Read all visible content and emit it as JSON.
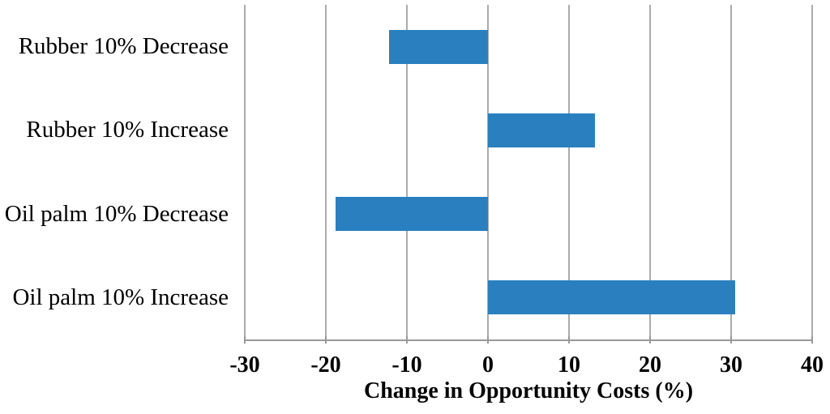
{
  "chart_data": {
    "type": "bar",
    "orientation": "horizontal",
    "title": "",
    "xlabel": "Change in Opportunity Costs (%)",
    "ylabel": "",
    "categories": [
      "Rubber 10% Decrease",
      "Rubber 10% Increase",
      "Oil palm 10% Decrease",
      "Oil palm 10% Increase"
    ],
    "values": [
      -12.2,
      13.2,
      -18.8,
      30.5
    ],
    "xlim": [
      -30,
      40
    ],
    "xticks": [
      -30,
      -20,
      -10,
      0,
      10,
      20,
      30,
      40
    ],
    "xtick_labels": [
      "-30",
      "-20",
      "-10",
      "0",
      "10",
      "20",
      "30",
      "40"
    ],
    "grid": "vertical",
    "legend": "none",
    "colors": {
      "bar": "#2a80bf",
      "gridline": "#ababab",
      "axis_line": "#999999",
      "text": "#000000",
      "background": "#ffffff"
    }
  }
}
